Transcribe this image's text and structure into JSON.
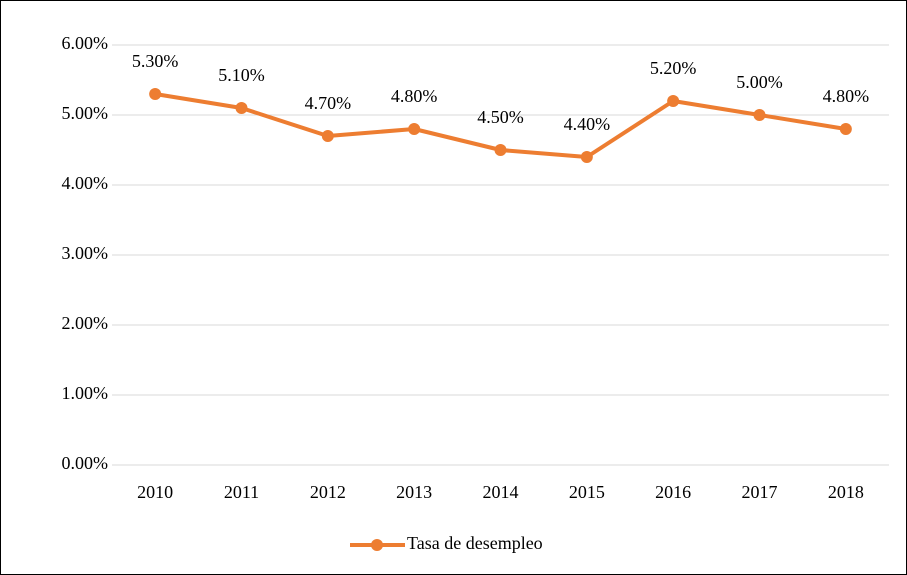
{
  "chart_data": {
    "type": "line",
    "categories": [
      "2010",
      "2011",
      "2012",
      "2013",
      "2014",
      "2015",
      "2016",
      "2017",
      "2018"
    ],
    "series": [
      {
        "name": "Tasa de desempleo",
        "color": "#ed7d31",
        "values": [
          5.3,
          5.1,
          4.7,
          4.8,
          4.5,
          4.4,
          5.2,
          5.0,
          4.8
        ],
        "value_labels": [
          "5.30%",
          "5.10%",
          "4.70%",
          "4.80%",
          "4.50%",
          "4.40%",
          "5.20%",
          "5.00%",
          "4.80%"
        ]
      }
    ],
    "ylim": [
      0,
      6
    ],
    "yticks": [
      {
        "value": 0,
        "label": "0.00%"
      },
      {
        "value": 1,
        "label": "1.00%"
      },
      {
        "value": 2,
        "label": "2.00%"
      },
      {
        "value": 3,
        "label": "3.00%"
      },
      {
        "value": 4,
        "label": "4.00%"
      },
      {
        "value": 5,
        "label": "5.00%"
      },
      {
        "value": 6,
        "label": "6.00%"
      }
    ],
    "grid": true,
    "legend": "bottom"
  }
}
